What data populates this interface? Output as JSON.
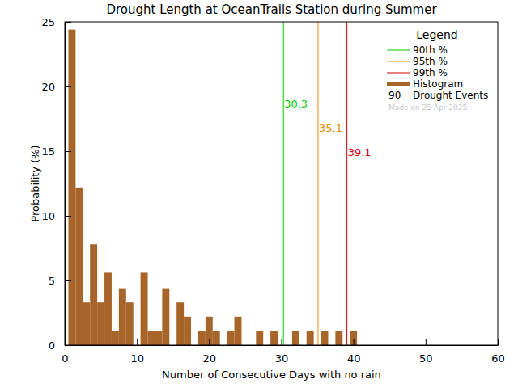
{
  "chart_data": {
    "type": "histogram",
    "title": "Drought Length at OceanTrails Station during Summer",
    "x_label": "Number of Consecutive Days with no rain",
    "y_label": "Probability (%)",
    "bins": [
      0.5,
      1.5,
      2.5,
      3.5,
      4.5,
      5.5,
      6.5,
      7.5,
      8.5,
      9.5,
      10.5,
      11.5,
      12.5,
      13.5,
      14.5,
      15.5,
      16.5,
      17.5,
      18.5,
      19.5,
      20.5,
      21.5,
      22.5,
      23.5,
      24.5,
      25.5,
      26.5,
      27.5,
      28.5,
      29.5,
      30.5,
      31.5,
      32.5,
      33.5,
      34.5,
      35.5,
      36.5,
      37.5,
      38.5,
      39.5,
      40.5
    ],
    "values": [
      24.4,
      12.2,
      3.3,
      7.8,
      3.3,
      5.6,
      1.1,
      4.4,
      3.3,
      0,
      5.6,
      1.1,
      1.1,
      4.4,
      0,
      3.3,
      2.2,
      0,
      1.1,
      2.2,
      1.1,
      0,
      1.1,
      2.2,
      0,
      0,
      1.1,
      0,
      1.1,
      0,
      0,
      1.1,
      0,
      1.1,
      0,
      1.1,
      0,
      1.1,
      0,
      1.1
    ],
    "color": "#a8652a",
    "xlim": [
      0,
      60
    ],
    "xticks": [
      0,
      10,
      20,
      30,
      40,
      50,
      60
    ],
    "ylim": [
      0,
      25
    ],
    "yticks": [
      0,
      5,
      10,
      15,
      20,
      25
    ],
    "percentiles": [
      {
        "name": "90th %",
        "value": 30.3,
        "color": "#00cc00"
      },
      {
        "name": "95th %",
        "value": 35.1,
        "color": "#e88a00"
      },
      {
        "name": "99th %",
        "value": 39.1,
        "color": "#d00000"
      }
    ],
    "legend": "top-right",
    "legend_title": "Legend",
    "histogram_name": "Histogram",
    "event_count": 90,
    "event_label": "Drought Events",
    "footnote": "Made on 25 Apr 2025"
  }
}
